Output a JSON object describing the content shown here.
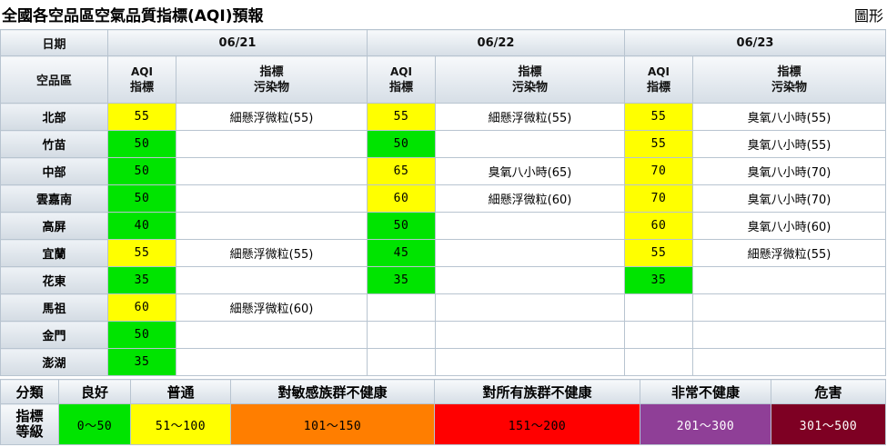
{
  "page": {
    "title": "全國各空品區空氣品質指標(AQI)預報",
    "chart_link": "圖形"
  },
  "table": {
    "date_header": "日期",
    "region_header": "空品區",
    "aqi_header_line1": "AQI",
    "aqi_header_line2": "指標",
    "pollutant_header_line1": "指標",
    "pollutant_header_line2": "污染物",
    "dates": [
      "06/21",
      "06/22",
      "06/23"
    ],
    "rows": [
      {
        "region": "北部",
        "days": [
          {
            "aqi": "55",
            "level": "y",
            "pollutant": "細懸浮微粒(55)"
          },
          {
            "aqi": "55",
            "level": "y",
            "pollutant": "細懸浮微粒(55)"
          },
          {
            "aqi": "55",
            "level": "y",
            "pollutant": "臭氧八小時(55)"
          }
        ]
      },
      {
        "region": "竹苗",
        "days": [
          {
            "aqi": "50",
            "level": "g",
            "pollutant": ""
          },
          {
            "aqi": "50",
            "level": "g",
            "pollutant": ""
          },
          {
            "aqi": "55",
            "level": "y",
            "pollutant": "臭氧八小時(55)"
          }
        ]
      },
      {
        "region": "中部",
        "days": [
          {
            "aqi": "50",
            "level": "g",
            "pollutant": ""
          },
          {
            "aqi": "65",
            "level": "y",
            "pollutant": "臭氧八小時(65)"
          },
          {
            "aqi": "70",
            "level": "y",
            "pollutant": "臭氧八小時(70)"
          }
        ]
      },
      {
        "region": "雲嘉南",
        "days": [
          {
            "aqi": "50",
            "level": "g",
            "pollutant": ""
          },
          {
            "aqi": "60",
            "level": "y",
            "pollutant": "細懸浮微粒(60)"
          },
          {
            "aqi": "70",
            "level": "y",
            "pollutant": "臭氧八小時(70)"
          }
        ]
      },
      {
        "region": "高屏",
        "days": [
          {
            "aqi": "40",
            "level": "g",
            "pollutant": ""
          },
          {
            "aqi": "50",
            "level": "g",
            "pollutant": ""
          },
          {
            "aqi": "60",
            "level": "y",
            "pollutant": "臭氧八小時(60)"
          }
        ]
      },
      {
        "region": "宜蘭",
        "days": [
          {
            "aqi": "55",
            "level": "y",
            "pollutant": "細懸浮微粒(55)"
          },
          {
            "aqi": "45",
            "level": "g",
            "pollutant": ""
          },
          {
            "aqi": "55",
            "level": "y",
            "pollutant": "細懸浮微粒(55)"
          }
        ]
      },
      {
        "region": "花東",
        "days": [
          {
            "aqi": "35",
            "level": "g",
            "pollutant": ""
          },
          {
            "aqi": "35",
            "level": "g",
            "pollutant": ""
          },
          {
            "aqi": "35",
            "level": "g",
            "pollutant": ""
          }
        ]
      },
      {
        "region": "馬祖",
        "days": [
          {
            "aqi": "60",
            "level": "y",
            "pollutant": "細懸浮微粒(60)"
          },
          {
            "aqi": "",
            "level": "",
            "pollutant": ""
          },
          {
            "aqi": "",
            "level": "",
            "pollutant": ""
          }
        ]
      },
      {
        "region": "金門",
        "days": [
          {
            "aqi": "50",
            "level": "g",
            "pollutant": ""
          },
          {
            "aqi": "",
            "level": "",
            "pollutant": ""
          },
          {
            "aqi": "",
            "level": "",
            "pollutant": ""
          }
        ]
      },
      {
        "region": "澎湖",
        "days": [
          {
            "aqi": "35",
            "level": "g",
            "pollutant": ""
          },
          {
            "aqi": "",
            "level": "",
            "pollutant": ""
          },
          {
            "aqi": "",
            "level": "",
            "pollutant": ""
          }
        ]
      }
    ]
  },
  "level_colors": {
    "g": "#00e400",
    "y": "#ffff00"
  },
  "legend": {
    "category_label": "分類",
    "level_label_line1": "指標",
    "level_label_line2": "等級",
    "levels": [
      {
        "name": "良好",
        "range": "0～50",
        "color": "#00e400",
        "text_color": "#000000"
      },
      {
        "name": "普通",
        "range": "51～100",
        "color": "#ffff00",
        "text_color": "#000000"
      },
      {
        "name": "對敏感族群不健康",
        "range": "101～150",
        "color": "#ff7e00",
        "text_color": "#000000"
      },
      {
        "name": "對所有族群不健康",
        "range": "151～200",
        "color": "#ff0000",
        "text_color": "#000000"
      },
      {
        "name": "非常不健康",
        "range": "201～300",
        "color": "#8f3f97",
        "text_color": "#ffffff"
      },
      {
        "name": "危害",
        "range": "301～500",
        "color": "#7e0023",
        "text_color": "#ffffff"
      }
    ]
  }
}
